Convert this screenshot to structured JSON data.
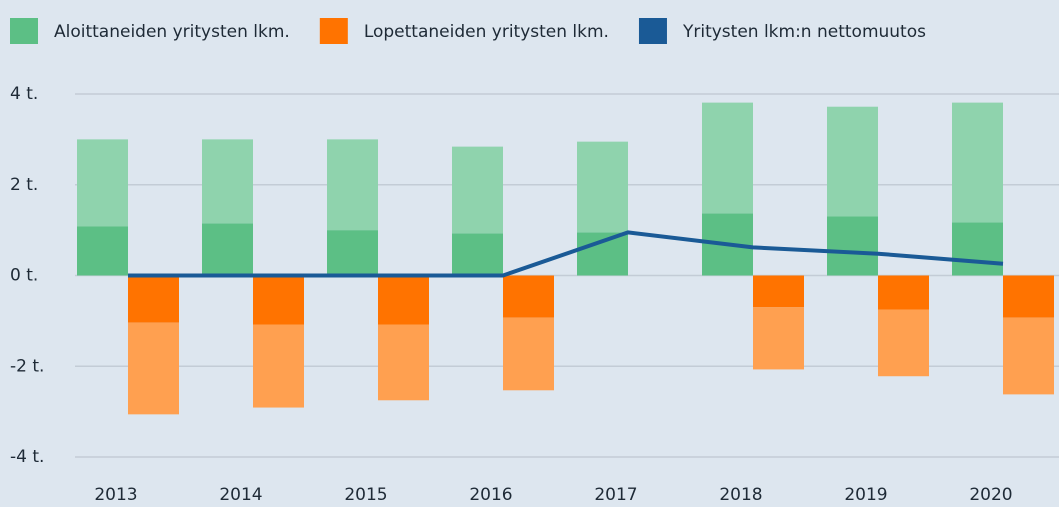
{
  "chart_data": {
    "type": "bar",
    "categories": [
      "2013",
      "2014",
      "2015",
      "2016",
      "2017",
      "2018",
      "2019",
      "2020"
    ],
    "series": [
      {
        "name": "Aloittaneiden yritysten lkm.",
        "color": "#5cbf85",
        "values": [
          1.08,
          1.15,
          1.0,
          0.93,
          0.95,
          1.37,
          1.3,
          1.17
        ]
      },
      {
        "color": "#8fd3ad",
        "values": [
          1.92,
          1.85,
          2.0,
          1.91,
          2.0,
          2.44,
          2.42,
          2.64
        ]
      },
      {
        "name": "Lopettaneiden yritysten lkm.",
        "color": "#ff7300",
        "values": [
          -1.04,
          -1.08,
          -1.08,
          -0.93,
          0,
          -0.7,
          -0.75,
          -0.93
        ]
      },
      {
        "color": "#ffa050",
        "values": [
          -2.02,
          -1.83,
          -1.67,
          -1.6,
          0,
          -1.37,
          -1.47,
          -1.69
        ]
      },
      {
        "name": "Yritysten lkm:n nettomuutos",
        "color": "#1a5a96",
        "type": "line",
        "values": [
          0,
          0,
          0,
          0,
          0.95,
          0.62,
          0.48,
          0.26
        ]
      }
    ],
    "ylim": [
      -4,
      4
    ],
    "yticks": [
      {
        "value": -4,
        "label": "-4 t."
      },
      {
        "value": -2,
        "label": "-2 t."
      },
      {
        "value": 0,
        "label": "0 t."
      },
      {
        "value": 2,
        "label": "2 t."
      },
      {
        "value": 4,
        "label": "4 t."
      }
    ],
    "grid": true
  }
}
